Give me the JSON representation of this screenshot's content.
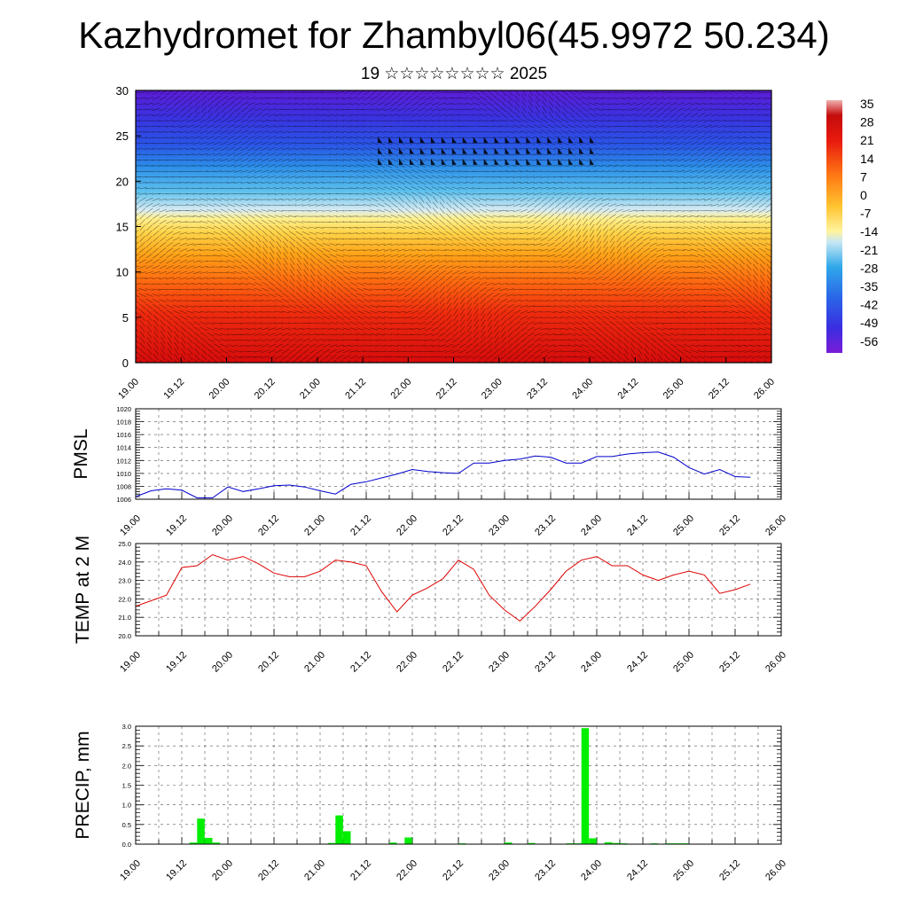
{
  "header": {
    "title": "Kazhydromet for Zhambyl06(45.9972 50.234)",
    "subtitle": "19 ☆☆☆☆☆☆☆☆ 2025"
  },
  "time_labels": [
    "19.00",
    "19.12",
    "20.00",
    "20.12",
    "21.00",
    "21.12",
    "22.00",
    "22.12",
    "23.00",
    "23.12",
    "24.00",
    "24.12",
    "25.00",
    "25.12",
    "26.00"
  ],
  "chart_data": [
    {
      "type": "heatmap",
      "title": "",
      "xlabel": "",
      "ylabel": "",
      "x_range": [
        0,
        84
      ],
      "ylim": [
        0,
        30
      ],
      "yticks": [
        0,
        5,
        10,
        15,
        20,
        25,
        30
      ],
      "colorbar_labels": [
        "35",
        "28",
        "21",
        "14",
        "7",
        "0",
        "-7",
        "-14",
        "-21",
        "-28",
        "-35",
        "-42",
        "-49",
        "-56"
      ],
      "colors": {
        "warm": "#e01010",
        "orange": "#ff9a10",
        "yellow": "#ffe96a",
        "pale": "#c8e6f0",
        "cyan": "#3aaee8",
        "blue": "#2a4ee6",
        "violet": "#5a18d6",
        "wind_barbs": "#000000"
      },
      "overlay": "wind vectors"
    },
    {
      "type": "line",
      "ylabel": "PMSL",
      "ylim": [
        1006,
        1020
      ],
      "yticks": [
        1006,
        1008,
        1010,
        1012,
        1014,
        1016,
        1018,
        1020
      ],
      "line_color": "#0000cc",
      "x": [
        0,
        2,
        4,
        6,
        8,
        10,
        12,
        14,
        16,
        18,
        20,
        22,
        24,
        26,
        28,
        30,
        32,
        34,
        36,
        38,
        40,
        42,
        44,
        46,
        48,
        50,
        52,
        54,
        56,
        58,
        60,
        62,
        64,
        66,
        68,
        70,
        72,
        74,
        76,
        78,
        80
      ],
      "values": [
        1006.4,
        1007.3,
        1007.6,
        1007.4,
        1006.2,
        1006.2,
        1007.9,
        1007.2,
        1007.6,
        1008.1,
        1008.2,
        1007.9,
        1007.3,
        1006.8,
        1008.3,
        1008.7,
        1009.3,
        1009.9,
        1010.6,
        1010.3,
        1010.1,
        1010.0,
        1011.6,
        1011.6,
        1012.0,
        1012.2,
        1012.7,
        1012.5,
        1011.6,
        1011.6,
        1012.6,
        1012.6,
        1013.0,
        1013.2,
        1013.3,
        1012.5,
        1010.9,
        1009.9,
        1010.6,
        1009.5,
        1009.4
      ]
    },
    {
      "type": "line",
      "ylabel": "TEMP at 2 M",
      "ylim": [
        20.0,
        25.0
      ],
      "yticks": [
        20.0,
        21.0,
        22.0,
        23.0,
        24.0,
        25.0
      ],
      "line_color": "#dd0000",
      "x": [
        0,
        2,
        4,
        6,
        8,
        10,
        12,
        14,
        16,
        18,
        20,
        22,
        24,
        26,
        28,
        30,
        32,
        34,
        36,
        38,
        40,
        42,
        44,
        46,
        48,
        50,
        52,
        54,
        56,
        58,
        60,
        62,
        64,
        66,
        68,
        70,
        72,
        74,
        76,
        78,
        80
      ],
      "values": [
        21.6,
        21.9,
        22.2,
        23.7,
        23.8,
        24.4,
        24.1,
        24.3,
        23.9,
        23.4,
        23.2,
        23.2,
        23.5,
        24.1,
        24.0,
        23.8,
        22.4,
        21.3,
        22.2,
        22.6,
        23.1,
        24.1,
        23.6,
        22.2,
        21.4,
        20.8,
        21.6,
        22.5,
        23.5,
        24.1,
        24.3,
        23.8,
        23.8,
        23.3,
        23.0,
        23.3,
        23.5,
        23.3,
        22.3,
        22.5,
        22.8
      ]
    },
    {
      "type": "bar",
      "ylabel": "PRECIP, mm",
      "ylim": [
        0.0,
        3.0
      ],
      "yticks": [
        0.0,
        0.5,
        1.0,
        1.5,
        2.0,
        2.5,
        3.0
      ],
      "bar_color": "#00ee00",
      "x": [
        7,
        8,
        9,
        10,
        25,
        26,
        27,
        33,
        35,
        42,
        48,
        50,
        51,
        56,
        57,
        58,
        59,
        61,
        62,
        63,
        67,
        69,
        70,
        71
      ],
      "values": [
        0.04,
        0.65,
        0.16,
        0.04,
        0.03,
        0.73,
        0.33,
        0.04,
        0.17,
        0.02,
        0.04,
        0.01,
        0.03,
        0.02,
        0.02,
        2.95,
        0.15,
        0.05,
        0.03,
        0.02,
        0.02,
        0.02,
        0.02,
        0.02
      ]
    }
  ]
}
